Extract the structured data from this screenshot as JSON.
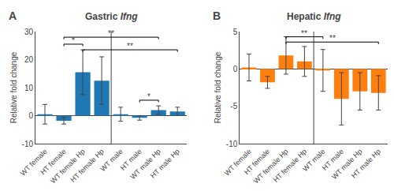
{
  "chart_data": [
    {
      "type": "bar",
      "title": "Gastric Ifng",
      "panel_label": "A",
      "categories": [
        "WT female",
        "HT female",
        "WT female Hp",
        "HT female Hp",
        "WT male",
        "HT male",
        "WT male Hp",
        "HT male Hp"
      ],
      "values": [
        0.5,
        -1.8,
        15.5,
        12.5,
        0.5,
        -0.8,
        2.0,
        1.5
      ],
      "errors": [
        3.5,
        1.2,
        8.0,
        8.5,
        2.5,
        0.8,
        1.5,
        1.5
      ],
      "ylim": [
        -10,
        30
      ],
      "yticks": [
        -10,
        0,
        10,
        20,
        30
      ],
      "ylabel": "Relative fold change",
      "grid": false,
      "brackets": [
        {
          "from": "HT female",
          "to": "WT female Hp",
          "y": 25.5,
          "label": "*"
        },
        {
          "from": "HT female",
          "to": "WT male Hp",
          "y": 28.0,
          "label": "**"
        },
        {
          "from": "WT female Hp",
          "to": "HT male Hp",
          "y": 23.5,
          "label": "**"
        },
        {
          "from": "HT male",
          "to": "WT male Hp",
          "y": 5.5,
          "label": "*"
        }
      ]
    },
    {
      "type": "bar",
      "title": "Hepatic Ifng",
      "panel_label": "B",
      "categories": [
        "WT female",
        "HT female",
        "WT female Hp",
        "HT female Hp",
        "WT male",
        "HT male",
        "WT male Hp",
        "HT male Hp"
      ],
      "values": [
        0.2,
        -1.8,
        1.8,
        1.0,
        -0.2,
        -4.0,
        -3.0,
        -3.2
      ],
      "errors": [
        1.8,
        0.8,
        2.5,
        2.0,
        2.8,
        3.5,
        2.5,
        2.3
      ],
      "ylim": [
        -10,
        5
      ],
      "yticks": [
        -10,
        -5,
        0,
        5
      ],
      "ylabel": "Relative fold change",
      "grid": false,
      "brackets": [
        {
          "from": "WT female Hp",
          "to": "WT male",
          "y": 4.3,
          "label": "**"
        },
        {
          "from": "WT female Hp",
          "to": "HT male Hp",
          "y": 3.6,
          "label": "**"
        }
      ]
    }
  ]
}
